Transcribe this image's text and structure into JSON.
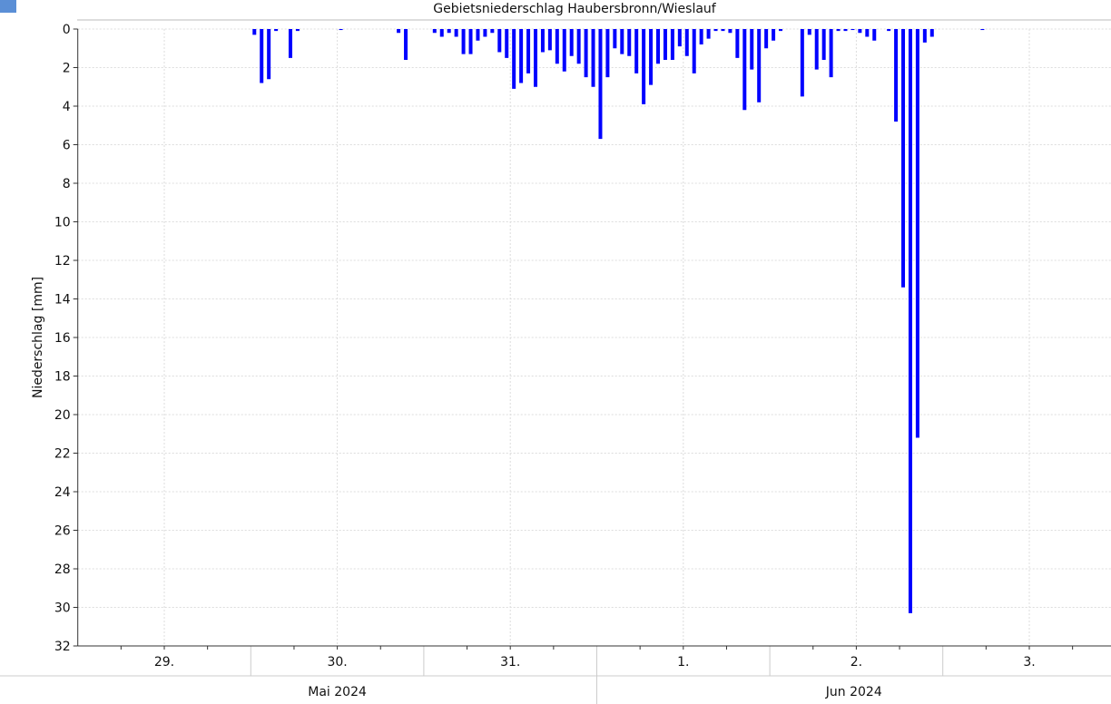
{
  "chart_data": {
    "type": "bar",
    "title": "Gebietsniederschlag Haubersbronn/Wieslauf",
    "y_label": "Niederschlag [mm]",
    "color": "#0000ff",
    "y_inverted": true,
    "grid": true,
    "ylim": [
      0,
      32
    ],
    "yticks": [
      0,
      2,
      4,
      6,
      8,
      10,
      12,
      14,
      16,
      18,
      20,
      22,
      24,
      26,
      28,
      30,
      32
    ],
    "xlim": [
      "2024-05-29T00:00",
      "2024-06-04T00:00"
    ],
    "xticks": [
      {
        "value": "2024-05-29T12:00",
        "label": "29."
      },
      {
        "value": "2024-05-30T12:00",
        "label": "30."
      },
      {
        "value": "2024-05-31T12:00",
        "label": "31."
      },
      {
        "value": "2024-06-01T12:00",
        "label": "1."
      },
      {
        "value": "2024-06-02T12:00",
        "label": "2."
      },
      {
        "value": "2024-06-03T12:00",
        "label": "3."
      }
    ],
    "x_groups": [
      {
        "start": "2024-05-29T00:00",
        "end": "2024-06-01T00:00",
        "label": "Mai 2024"
      },
      {
        "start": "2024-06-01T00:00",
        "end": "2024-06-04T00:00",
        "label": "Jun 2024"
      }
    ],
    "x": [
      "2024-05-30T00:00",
      "2024-05-30T01:00",
      "2024-05-30T02:00",
      "2024-05-30T03:00",
      "2024-05-30T05:00",
      "2024-05-30T06:00",
      "2024-05-30T12:00",
      "2024-05-30T20:00",
      "2024-05-30T21:00",
      "2024-05-31T01:00",
      "2024-05-31T02:00",
      "2024-05-31T03:00",
      "2024-05-31T04:00",
      "2024-05-31T05:00",
      "2024-05-31T06:00",
      "2024-05-31T07:00",
      "2024-05-31T08:00",
      "2024-05-31T09:00",
      "2024-05-31T10:00",
      "2024-05-31T11:00",
      "2024-05-31T12:00",
      "2024-05-31T13:00",
      "2024-05-31T14:00",
      "2024-05-31T15:00",
      "2024-05-31T16:00",
      "2024-05-31T17:00",
      "2024-05-31T18:00",
      "2024-05-31T19:00",
      "2024-05-31T20:00",
      "2024-05-31T21:00",
      "2024-05-31T22:00",
      "2024-05-31T23:00",
      "2024-06-01T00:00",
      "2024-06-01T01:00",
      "2024-06-01T02:00",
      "2024-06-01T03:00",
      "2024-06-01T04:00",
      "2024-06-01T05:00",
      "2024-06-01T06:00",
      "2024-06-01T07:00",
      "2024-06-01T08:00",
      "2024-06-01T09:00",
      "2024-06-01T10:00",
      "2024-06-01T11:00",
      "2024-06-01T12:00",
      "2024-06-01T13:00",
      "2024-06-01T14:00",
      "2024-06-01T15:00",
      "2024-06-01T16:00",
      "2024-06-01T17:00",
      "2024-06-01T18:00",
      "2024-06-01T19:00",
      "2024-06-01T20:00",
      "2024-06-01T21:00",
      "2024-06-01T22:00",
      "2024-06-01T23:00",
      "2024-06-02T00:00",
      "2024-06-02T01:00",
      "2024-06-02T04:00",
      "2024-06-02T05:00",
      "2024-06-02T06:00",
      "2024-06-02T07:00",
      "2024-06-02T08:00",
      "2024-06-02T09:00",
      "2024-06-02T10:00",
      "2024-06-02T11:00",
      "2024-06-02T12:00",
      "2024-06-02T13:00",
      "2024-06-02T14:00",
      "2024-06-02T16:00",
      "2024-06-02T17:00",
      "2024-06-02T18:00",
      "2024-06-02T19:00",
      "2024-06-02T20:00",
      "2024-06-02T21:00",
      "2024-06-02T22:00",
      "2024-06-03T05:00"
    ],
    "values": [
      0.3,
      2.8,
      2.6,
      0.1,
      1.5,
      0.1,
      0.05,
      0.2,
      1.6,
      0.2,
      0.4,
      0.2,
      0.4,
      1.3,
      1.3,
      0.6,
      0.4,
      0.2,
      1.2,
      1.5,
      3.1,
      2.8,
      2.3,
      3.0,
      1.2,
      1.1,
      1.8,
      2.2,
      1.4,
      1.8,
      2.5,
      3.0,
      5.7,
      2.5,
      1.0,
      1.3,
      1.4,
      2.3,
      3.9,
      2.9,
      1.8,
      1.6,
      1.6,
      0.9,
      1.4,
      2.3,
      0.8,
      0.5,
      0.1,
      0.1,
      0.2,
      1.5,
      4.2,
      2.1,
      3.8,
      1.0,
      0.6,
      0.1,
      3.5,
      0.3,
      2.1,
      1.6,
      2.5,
      0.1,
      0.1,
      0.05,
      0.2,
      0.4,
      0.6,
      0.1,
      4.8,
      13.4,
      30.3,
      21.2,
      0.7,
      0.4,
      0.05
    ]
  }
}
